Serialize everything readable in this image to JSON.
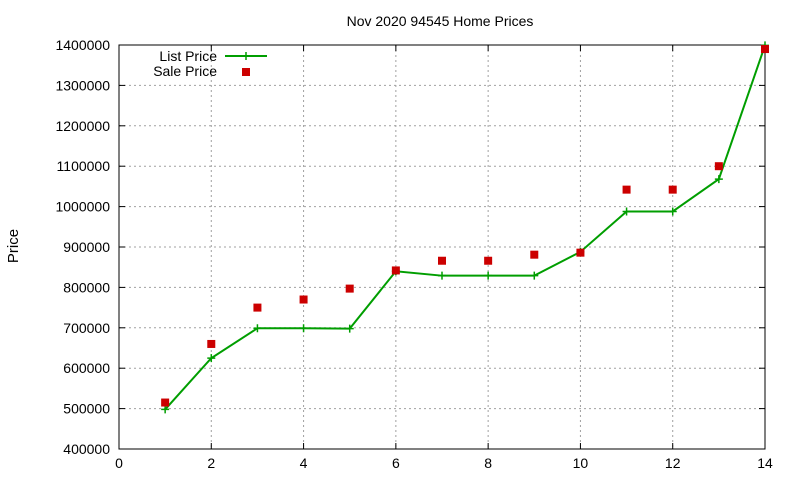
{
  "chart_data": {
    "type": "line",
    "title": "Nov 2020 94545 Home Prices",
    "xlabel": "",
    "ylabel": "Price",
    "xlim": [
      0,
      14
    ],
    "ylim": [
      400000,
      1400000
    ],
    "xticks": [
      0,
      2,
      4,
      6,
      8,
      10,
      12,
      14
    ],
    "yticks": [
      400000,
      500000,
      600000,
      700000,
      800000,
      900000,
      1000000,
      1100000,
      1200000,
      1300000,
      1400000
    ],
    "grid": true,
    "legend": "top-left",
    "series": [
      {
        "name": "List Price",
        "style": "line-with-plus-markers",
        "color": "#009e00",
        "x": [
          1,
          2,
          3,
          4,
          5,
          6,
          7,
          8,
          9,
          10,
          11,
          12,
          13,
          14
        ],
        "y": [
          498000,
          625000,
          699000,
          699000,
          698000,
          840000,
          829000,
          829000,
          829000,
          888000,
          988000,
          988000,
          1068000,
          1399000
        ]
      },
      {
        "name": "Sale Price",
        "style": "square-markers",
        "color": "#cc0000",
        "x": [
          1,
          2,
          3,
          4,
          5,
          6,
          7,
          8,
          9,
          10,
          11,
          12,
          13,
          14
        ],
        "y": [
          515000,
          660000,
          750000,
          770000,
          797000,
          842000,
          866000,
          866000,
          881000,
          886000,
          1042000,
          1042000,
          1100000,
          1390000
        ]
      }
    ]
  }
}
